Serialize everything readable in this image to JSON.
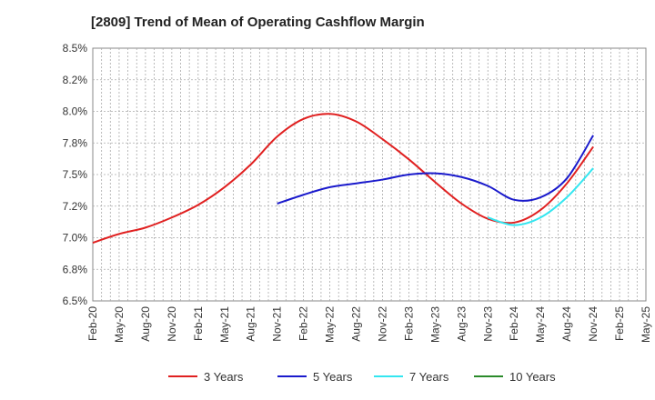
{
  "chart_data": {
    "type": "line",
    "title": "[2809]  Trend of Mean of Operating Cashflow Margin",
    "xlabel": "",
    "ylabel": "",
    "ylim": [
      6.5,
      8.5
    ],
    "grid": true,
    "legend_position": "bottom",
    "x_ticks": [
      "Feb-20",
      "May-20",
      "Aug-20",
      "Nov-20",
      "Feb-21",
      "May-21",
      "Aug-21",
      "Nov-21",
      "Feb-22",
      "May-22",
      "Aug-22",
      "Nov-22",
      "Feb-23",
      "May-23",
      "Aug-23",
      "Nov-23",
      "Feb-24",
      "May-24",
      "Aug-24",
      "Nov-24",
      "Feb-25",
      "May-25"
    ],
    "y_ticks": [
      "6.5%",
      "6.8%",
      "7.0%",
      "7.2%",
      "7.5%",
      "7.8%",
      "8.0%",
      "8.2%",
      "8.5%"
    ],
    "series": [
      {
        "name": "3 Years",
        "color": "#e02020",
        "start_index": 0,
        "values": [
          6.96,
          7.03,
          7.08,
          7.16,
          7.26,
          7.4,
          7.58,
          7.8,
          7.94,
          7.98,
          7.92,
          7.78,
          7.62,
          7.44,
          7.27,
          7.15,
          7.12,
          7.22,
          7.43,
          7.72
        ]
      },
      {
        "name": "5 Years",
        "color": "#1a1acc",
        "start_index": 7,
        "values": [
          7.27,
          7.34,
          7.4,
          7.43,
          7.46,
          7.5,
          7.51,
          7.48,
          7.41,
          7.3,
          7.32,
          7.47,
          7.81
        ]
      },
      {
        "name": "7 Years",
        "color": "#33e6f0",
        "start_index": 15,
        "values": [
          7.16,
          7.1,
          7.16,
          7.32,
          7.55
        ]
      },
      {
        "name": "10 Years",
        "color": "#2a8a2a",
        "start_index": 0,
        "values": []
      }
    ]
  }
}
